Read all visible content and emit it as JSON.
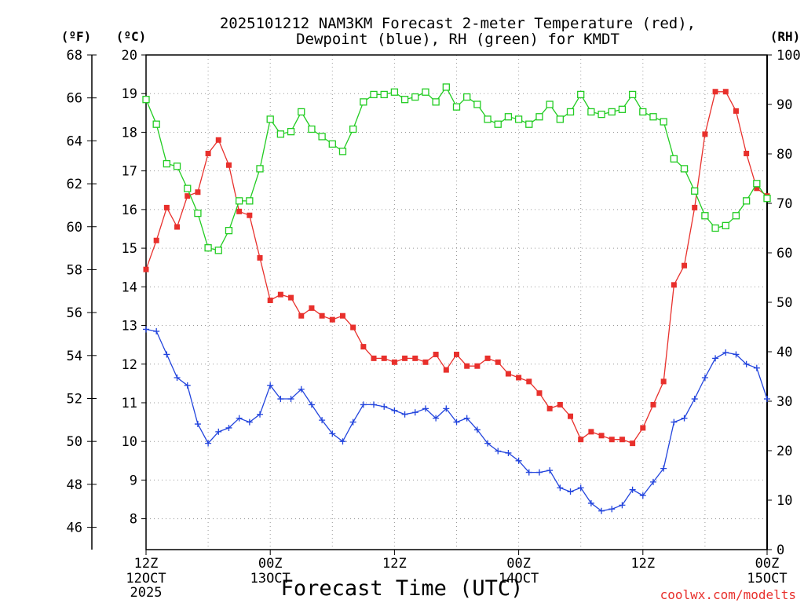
{
  "chart_data": {
    "type": "line",
    "title_line1": "2025101212 NAM3KM Forecast 2-meter Temperature (red),",
    "title_line2": "Dewpoint (blue), RH (green) for KMDT",
    "xlabel": "Forecast Time (UTC)",
    "credit": "coolwx.com/modelts",
    "unit_f": "(ºF)",
    "unit_c": "(ºC)",
    "unit_rh": "(RH)",
    "x_range_hours": [
      0,
      60
    ],
    "x_ticks": [
      {
        "hour": 0,
        "label1": "12Z",
        "label2": "12OCT",
        "label3": "2025"
      },
      {
        "hour": 12,
        "label1": "00Z",
        "label2": "13OCT",
        "label3": ""
      },
      {
        "hour": 24,
        "label1": "12Z",
        "label2": "",
        "label3": ""
      },
      {
        "hour": 36,
        "label1": "00Z",
        "label2": "14OCT",
        "label3": ""
      },
      {
        "hour": 48,
        "label1": "12Z",
        "label2": "",
        "label3": ""
      },
      {
        "hour": 60,
        "label1": "00Z",
        "label2": "15OCT",
        "label3": ""
      }
    ],
    "y_left_c": {
      "range": [
        7.2,
        20
      ],
      "ticks": [
        8,
        9,
        10,
        11,
        12,
        13,
        14,
        15,
        16,
        17,
        18,
        19,
        20
      ]
    },
    "y_left_f": {
      "ticks": [
        46,
        48,
        50,
        52,
        54,
        56,
        58,
        60,
        62,
        64,
        66,
        68
      ]
    },
    "y_right_rh": {
      "range": [
        0,
        100
      ],
      "ticks": [
        0,
        10,
        20,
        30,
        40,
        50,
        60,
        70,
        80,
        90,
        100
      ]
    },
    "series": [
      {
        "name": "2-meter Temperature",
        "unit": "C",
        "color": "#e8302c",
        "marker": "filled-square",
        "values": [
          14.45,
          15.2,
          16.05,
          15.55,
          16.35,
          16.45,
          17.45,
          17.8,
          17.15,
          15.95,
          15.85,
          14.75,
          13.65,
          13.8,
          13.72,
          13.25,
          13.45,
          13.25,
          13.15,
          13.25,
          12.95,
          12.45,
          12.15,
          12.15,
          12.05,
          12.15,
          12.15,
          12.05,
          12.25,
          11.85,
          12.25,
          11.95,
          11.95,
          12.15,
          12.05,
          11.75,
          11.65,
          11.55,
          11.25,
          10.85,
          10.95,
          10.65,
          10.05,
          10.25,
          10.15,
          10.05,
          10.05,
          9.95,
          10.35,
          10.95,
          11.55,
          14.05,
          14.55,
          16.05,
          17.95,
          19.05,
          19.05,
          18.55,
          17.45,
          16.55,
          16.35
        ]
      },
      {
        "name": "Dewpoint",
        "unit": "C",
        "color": "#2244dd",
        "marker": "plus",
        "values": [
          12.9,
          12.85,
          12.25,
          11.65,
          11.45,
          10.45,
          9.95,
          10.25,
          10.35,
          10.6,
          10.5,
          10.7,
          11.45,
          11.1,
          11.1,
          11.35,
          10.95,
          10.55,
          10.2,
          10.0,
          10.5,
          10.95,
          10.95,
          10.9,
          10.8,
          10.7,
          10.75,
          10.85,
          10.6,
          10.85,
          10.5,
          10.6,
          10.3,
          9.95,
          9.75,
          9.7,
          9.5,
          9.2,
          9.2,
          9.25,
          8.8,
          8.7,
          8.8,
          8.4,
          8.2,
          8.25,
          8.35,
          8.75,
          8.6,
          8.95,
          9.3,
          10.5,
          10.6,
          11.1,
          11.65,
          12.15,
          12.3,
          12.25,
          12.0,
          11.9,
          11.1
        ]
      },
      {
        "name": "RH",
        "unit": "%",
        "color": "#22cc22",
        "marker": "open-square",
        "values": [
          91,
          86,
          78,
          77.5,
          73,
          68,
          61,
          60.5,
          64.5,
          70.5,
          70.5,
          77,
          87,
          84,
          84.5,
          88.5,
          85,
          83.5,
          82,
          80.5,
          85,
          90.5,
          92,
          92,
          92.5,
          91,
          91.5,
          92.5,
          90.5,
          93.5,
          89.5,
          91.5,
          90,
          87,
          86,
          87.5,
          87,
          86,
          87.5,
          90,
          87,
          88.5,
          92,
          88.5,
          88,
          88.5,
          89,
          92,
          88.5,
          87.5,
          86.5,
          79,
          77,
          72.5,
          67.5,
          65,
          65.5,
          67.5,
          70.5,
          74,
          71
        ]
      }
    ]
  }
}
